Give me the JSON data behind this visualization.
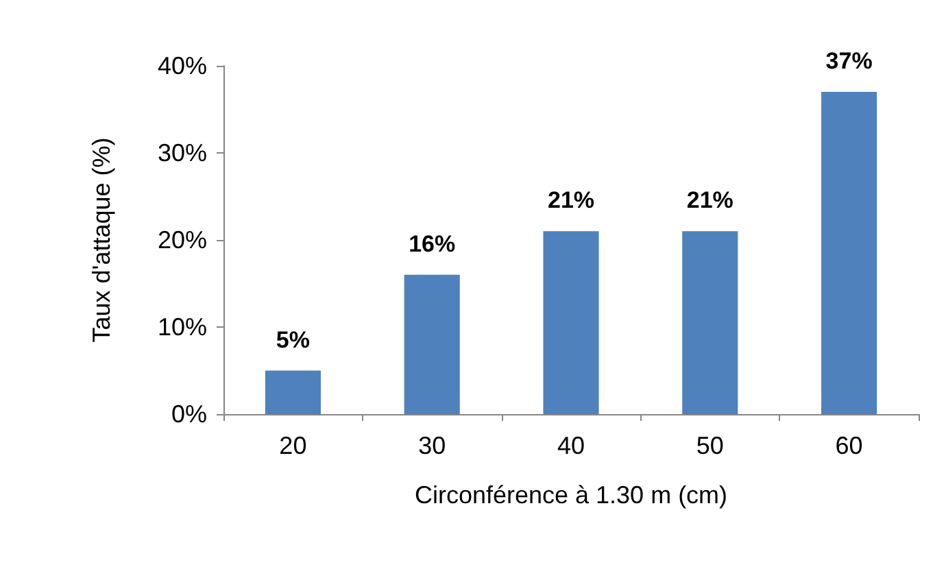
{
  "chart_data": {
    "type": "bar",
    "xlabel": "Circonférence à 1.30 m (cm)",
    "ylabel": "Taux d'attaque (%)",
    "categories": [
      "20",
      "30",
      "40",
      "50",
      "60"
    ],
    "values": [
      5,
      16,
      21,
      21,
      37
    ],
    "color": "#4f81bd",
    "value_labels": [
      "5%",
      "16%",
      "21%",
      "21%",
      "37%"
    ],
    "ylim": [
      0,
      40
    ],
    "yticks": [
      {
        "value": 0,
        "label": "0%"
      },
      {
        "value": 10,
        "label": "10%"
      },
      {
        "value": 20,
        "label": "20%"
      },
      {
        "value": 30,
        "label": "30%"
      },
      {
        "value": 40,
        "label": "40%"
      }
    ],
    "grid": false
  }
}
